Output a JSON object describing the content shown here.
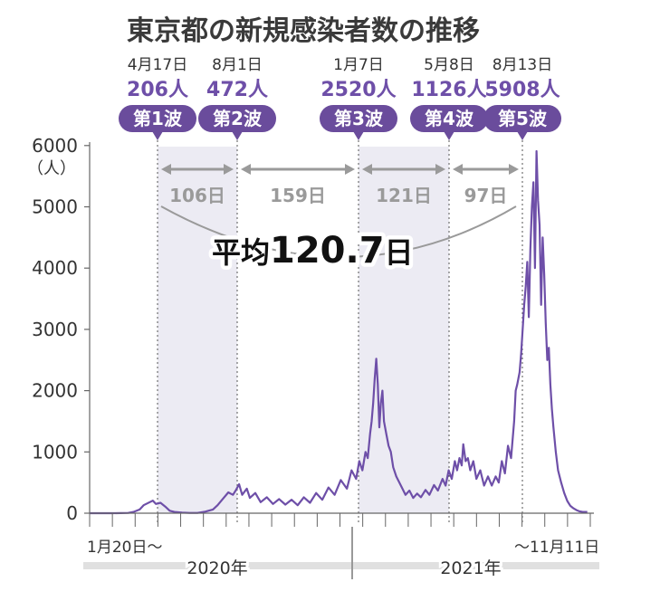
{
  "chart_data": {
    "type": "line",
    "title": "東京都の新規感染者数の推移",
    "y_unit": "（人）",
    "ylim": [
      0,
      6000
    ],
    "yticks": [
      "0",
      "1000",
      "2000",
      "3000",
      "4000",
      "5000",
      "6000"
    ],
    "x_start_label": "1月20日〜",
    "x_end_label": "〜11月11日",
    "years": [
      "2020年",
      "2021年"
    ],
    "waves": [
      {
        "date": "4月17日",
        "count": "206人",
        "label": "第1波",
        "y": 206
      },
      {
        "date": "8月1日",
        "count": "472人",
        "label": "第2波",
        "y": 472
      },
      {
        "date": "1月7日",
        "count": "2520人",
        "label": "第3波",
        "y": 2520
      },
      {
        "date": "5月8日",
        "count": "1126人",
        "label": "第4波",
        "y": 1126
      },
      {
        "date": "8月13日",
        "count": "5908人",
        "label": "第5波",
        "y": 5908
      }
    ],
    "intervals": [
      "106日",
      "159日",
      "121日",
      "97日"
    ],
    "average_prefix": "平均",
    "average_value": "120.7",
    "average_suffix": "日",
    "series": [
      {
        "values": [
          [
            0,
            0
          ],
          [
            10,
            0
          ],
          [
            20,
            0
          ],
          [
            30,
            0
          ],
          [
            40,
            1
          ],
          [
            50,
            5
          ],
          [
            57,
            20
          ],
          [
            65,
            60
          ],
          [
            70,
            130
          ],
          [
            78,
            180
          ],
          [
            82,
            206
          ],
          [
            86,
            150
          ],
          [
            92,
            170
          ],
          [
            98,
            110
          ],
          [
            104,
            40
          ],
          [
            110,
            20
          ],
          [
            120,
            10
          ],
          [
            130,
            5
          ],
          [
            140,
            5
          ],
          [
            150,
            25
          ],
          [
            160,
            60
          ],
          [
            166,
            130
          ],
          [
            172,
            220
          ],
          [
            180,
            340
          ],
          [
            186,
            300
          ],
          [
            190,
            380
          ],
          [
            194,
            472
          ],
          [
            198,
            300
          ],
          [
            204,
            400
          ],
          [
            208,
            250
          ],
          [
            215,
            330
          ],
          [
            222,
            180
          ],
          [
            230,
            260
          ],
          [
            238,
            150
          ],
          [
            246,
            230
          ],
          [
            254,
            140
          ],
          [
            262,
            220
          ],
          [
            270,
            130
          ],
          [
            278,
            260
          ],
          [
            286,
            170
          ],
          [
            294,
            330
          ],
          [
            302,
            220
          ],
          [
            310,
            420
          ],
          [
            318,
            300
          ],
          [
            326,
            540
          ],
          [
            334,
            400
          ],
          [
            340,
            700
          ],
          [
            346,
            560
          ],
          [
            350,
            850
          ],
          [
            354,
            700
          ],
          [
            358,
            1000
          ],
          [
            361,
            900
          ],
          [
            364,
            1300
          ],
          [
            366,
            1500
          ],
          [
            368,
            1800
          ],
          [
            370,
            2200
          ],
          [
            372,
            2520
          ],
          [
            374,
            2100
          ],
          [
            376,
            1400
          ],
          [
            378,
            1800
          ],
          [
            380,
            2000
          ],
          [
            382,
            1500
          ],
          [
            385,
            1300
          ],
          [
            388,
            1100
          ],
          [
            391,
            1000
          ],
          [
            394,
            750
          ],
          [
            398,
            600
          ],
          [
            402,
            500
          ],
          [
            406,
            400
          ],
          [
            410,
            300
          ],
          [
            415,
            370
          ],
          [
            420,
            250
          ],
          [
            425,
            320
          ],
          [
            430,
            260
          ],
          [
            436,
            380
          ],
          [
            441,
            300
          ],
          [
            447,
            460
          ],
          [
            452,
            370
          ],
          [
            458,
            560
          ],
          [
            462,
            450
          ],
          [
            466,
            700
          ],
          [
            470,
            560
          ],
          [
            474,
            850
          ],
          [
            477,
            700
          ],
          [
            480,
            900
          ],
          [
            483,
            780
          ],
          [
            485,
            1126
          ],
          [
            488,
            850
          ],
          [
            491,
            900
          ],
          [
            494,
            700
          ],
          [
            498,
            850
          ],
          [
            502,
            560
          ],
          [
            507,
            700
          ],
          [
            512,
            450
          ],
          [
            517,
            600
          ],
          [
            522,
            450
          ],
          [
            527,
            600
          ],
          [
            531,
            500
          ],
          [
            535,
            850
          ],
          [
            539,
            650
          ],
          [
            543,
            1100
          ],
          [
            547,
            900
          ],
          [
            551,
            1500
          ],
          [
            553,
            2000
          ],
          [
            555,
            2100
          ],
          [
            558,
            2300
          ],
          [
            560,
            2600
          ],
          [
            562,
            3000
          ],
          [
            564,
            3400
          ],
          [
            566,
            3700
          ],
          [
            568,
            4100
          ],
          [
            570,
            3200
          ],
          [
            572,
            4300
          ],
          [
            574,
            5000
          ],
          [
            576,
            5400
          ],
          [
            578,
            4000
          ],
          [
            580,
            5908
          ],
          [
            582,
            5100
          ],
          [
            584,
            4700
          ],
          [
            586,
            3400
          ],
          [
            588,
            4500
          ],
          [
            590,
            3900
          ],
          [
            592,
            3100
          ],
          [
            594,
            2500
          ],
          [
            596,
            2700
          ],
          [
            598,
            2100
          ],
          [
            600,
            1700
          ],
          [
            602,
            1400
          ],
          [
            605,
            1000
          ],
          [
            608,
            700
          ],
          [
            612,
            500
          ],
          [
            616,
            330
          ],
          [
            620,
            200
          ],
          [
            624,
            120
          ],
          [
            628,
            80
          ],
          [
            632,
            50
          ],
          [
            636,
            30
          ],
          [
            640,
            20
          ],
          [
            646,
            20
          ]
        ]
      }
    ],
    "colors": {
      "line": "#6e4fa8",
      "badge": "#6a4c9c",
      "band": "#ecebf3",
      "arrow": "#9a9a9a",
      "axis": "#666666"
    }
  }
}
